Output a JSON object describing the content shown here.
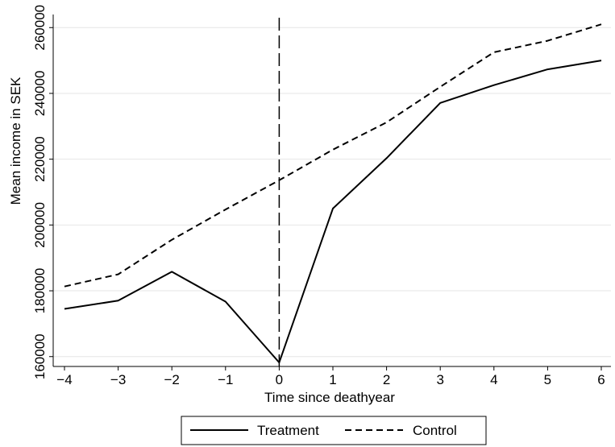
{
  "chart_data": {
    "type": "line",
    "xlabel": "Time since deathyear",
    "ylabel": "Mean income in SEK",
    "x": [
      -4,
      -3,
      -2,
      -1,
      0,
      1,
      2,
      3,
      4,
      5,
      6
    ],
    "xlim": [
      -4,
      6
    ],
    "ylim": [
      157000,
      263000
    ],
    "xticks": [
      "−4",
      "−3",
      "−2",
      "−1",
      "0",
      "1",
      "2",
      "3",
      "4",
      "5",
      "6"
    ],
    "yticks": [
      "160000",
      "180000",
      "200000",
      "220000",
      "240000",
      "260000"
    ],
    "ytick_values": [
      160000,
      180000,
      200000,
      220000,
      240000,
      260000
    ],
    "grid": "horizontal",
    "vline_x": 0,
    "legend_position": "bottom",
    "series": [
      {
        "name": "Treatment",
        "style": "solid",
        "color": "#000000",
        "values": [
          174500,
          177000,
          185800,
          176700,
          158200,
          205000,
          220300,
          237100,
          242500,
          247300,
          250000
        ]
      },
      {
        "name": "Control",
        "style": "dashed",
        "color": "#000000",
        "values": [
          181300,
          185000,
          195500,
          204700,
          213600,
          222900,
          231200,
          242000,
          252500,
          256000,
          261000
        ]
      }
    ]
  }
}
